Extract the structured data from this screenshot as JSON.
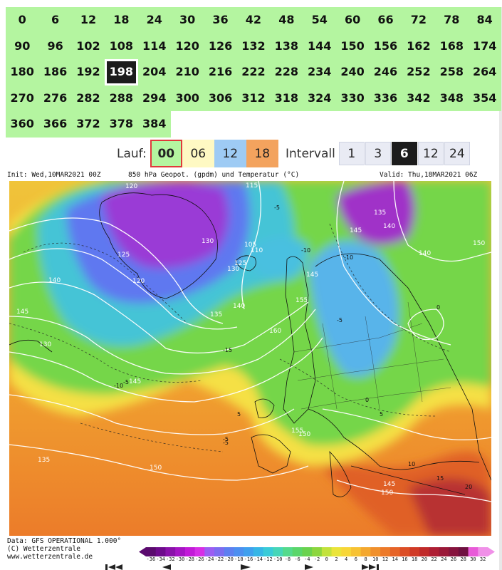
{
  "hours": {
    "rows": [
      [
        "0",
        "6",
        "12",
        "18",
        "24",
        "30",
        "36",
        "42",
        "48",
        "54",
        "60",
        "66",
        "72",
        "78",
        "84"
      ],
      [
        "90",
        "96",
        "102",
        "108",
        "114",
        "120",
        "126",
        "132",
        "138",
        "144",
        "150",
        "156",
        "162",
        "168",
        "174"
      ],
      [
        "180",
        "186",
        "192",
        "198",
        "204",
        "210",
        "216",
        "222",
        "228",
        "234",
        "240",
        "246",
        "252",
        "258",
        "264"
      ],
      [
        "270",
        "276",
        "282",
        "288",
        "294",
        "300",
        "306",
        "312",
        "318",
        "324",
        "330",
        "336",
        "342",
        "348",
        "354"
      ],
      [
        "360",
        "366",
        "372",
        "378",
        "384"
      ]
    ],
    "selected": "198"
  },
  "run": {
    "label": "Lauf:",
    "options": [
      "00",
      "06",
      "12",
      "18"
    ],
    "selected": "00"
  },
  "interval": {
    "label": "Intervall",
    "options": [
      "1",
      "3",
      "6",
      "12",
      "24"
    ],
    "selected": "6"
  },
  "map": {
    "init": "Init: Wed,10MAR2021 00Z",
    "title": "850 hPa Geopot. (gpdm) und Temperatur (°C)",
    "valid": "Valid: Thu,18MAR2021 06Z",
    "contour_labels": {
      "geopot": [
        "120",
        "115",
        "130",
        "125",
        "120",
        "110",
        "105",
        "135",
        "140",
        "130",
        "125",
        "145",
        "140",
        "135",
        "130",
        "140",
        "150",
        "145",
        "155",
        "160",
        "150",
        "145",
        "145",
        "150",
        "155",
        "150",
        "135",
        "140",
        "145"
      ],
      "temp": [
        "-5",
        "-10",
        "-15",
        "-5",
        "-10",
        "-5",
        "0",
        "5",
        "-5",
        "-10",
        "-5",
        "0",
        "5",
        "10",
        "15",
        "20"
      ]
    }
  },
  "credit": {
    "line1": "Data: GFS OPERATIONAL 1.000°",
    "line2": "(C) Wetterzentrale",
    "line3": "www.wetterzentrale.de"
  },
  "colorscale": {
    "ticks": [
      "-36",
      "-34",
      "-32",
      "-30",
      "-28",
      "-26",
      "-24",
      "-22",
      "-20",
      "-18",
      "-16",
      "-14",
      "-12",
      "-10",
      "-8",
      "-6",
      "-4",
      "-2",
      "0",
      "2",
      "4",
      "6",
      "8",
      "10",
      "12",
      "14",
      "16",
      "18",
      "20",
      "22",
      "24",
      "26",
      "28",
      "30",
      "32"
    ],
    "colors": [
      "#5a0a6e",
      "#6e0a8c",
      "#8a10aa",
      "#a614c4",
      "#c21ad8",
      "#d62ee6",
      "#9b5df2",
      "#7c6cf0",
      "#5d7ff0",
      "#4c8ff0",
      "#3fa0ee",
      "#36b6e6",
      "#39cbd8",
      "#46d6b8",
      "#54da8c",
      "#5ad66a",
      "#6ad24e",
      "#8cd63e",
      "#c2e23c",
      "#eae43a",
      "#f7d638",
      "#f7c233",
      "#f4a82f",
      "#f0902c",
      "#ec7a2a",
      "#e66428",
      "#dc4e26",
      "#d03a26",
      "#c02a2a",
      "#ae1e34",
      "#9a1838",
      "#86143e",
      "#6e1040",
      "#e85ad8",
      "#f090e8"
    ]
  },
  "nav": {
    "icons": [
      "first-icon",
      "prev-icon",
      "play-icon",
      "next-icon",
      "last-icon"
    ]
  },
  "colors": {
    "cell": "#b4f5a0",
    "selected": "#1c1c1c",
    "run_border": "#e03a3a"
  }
}
